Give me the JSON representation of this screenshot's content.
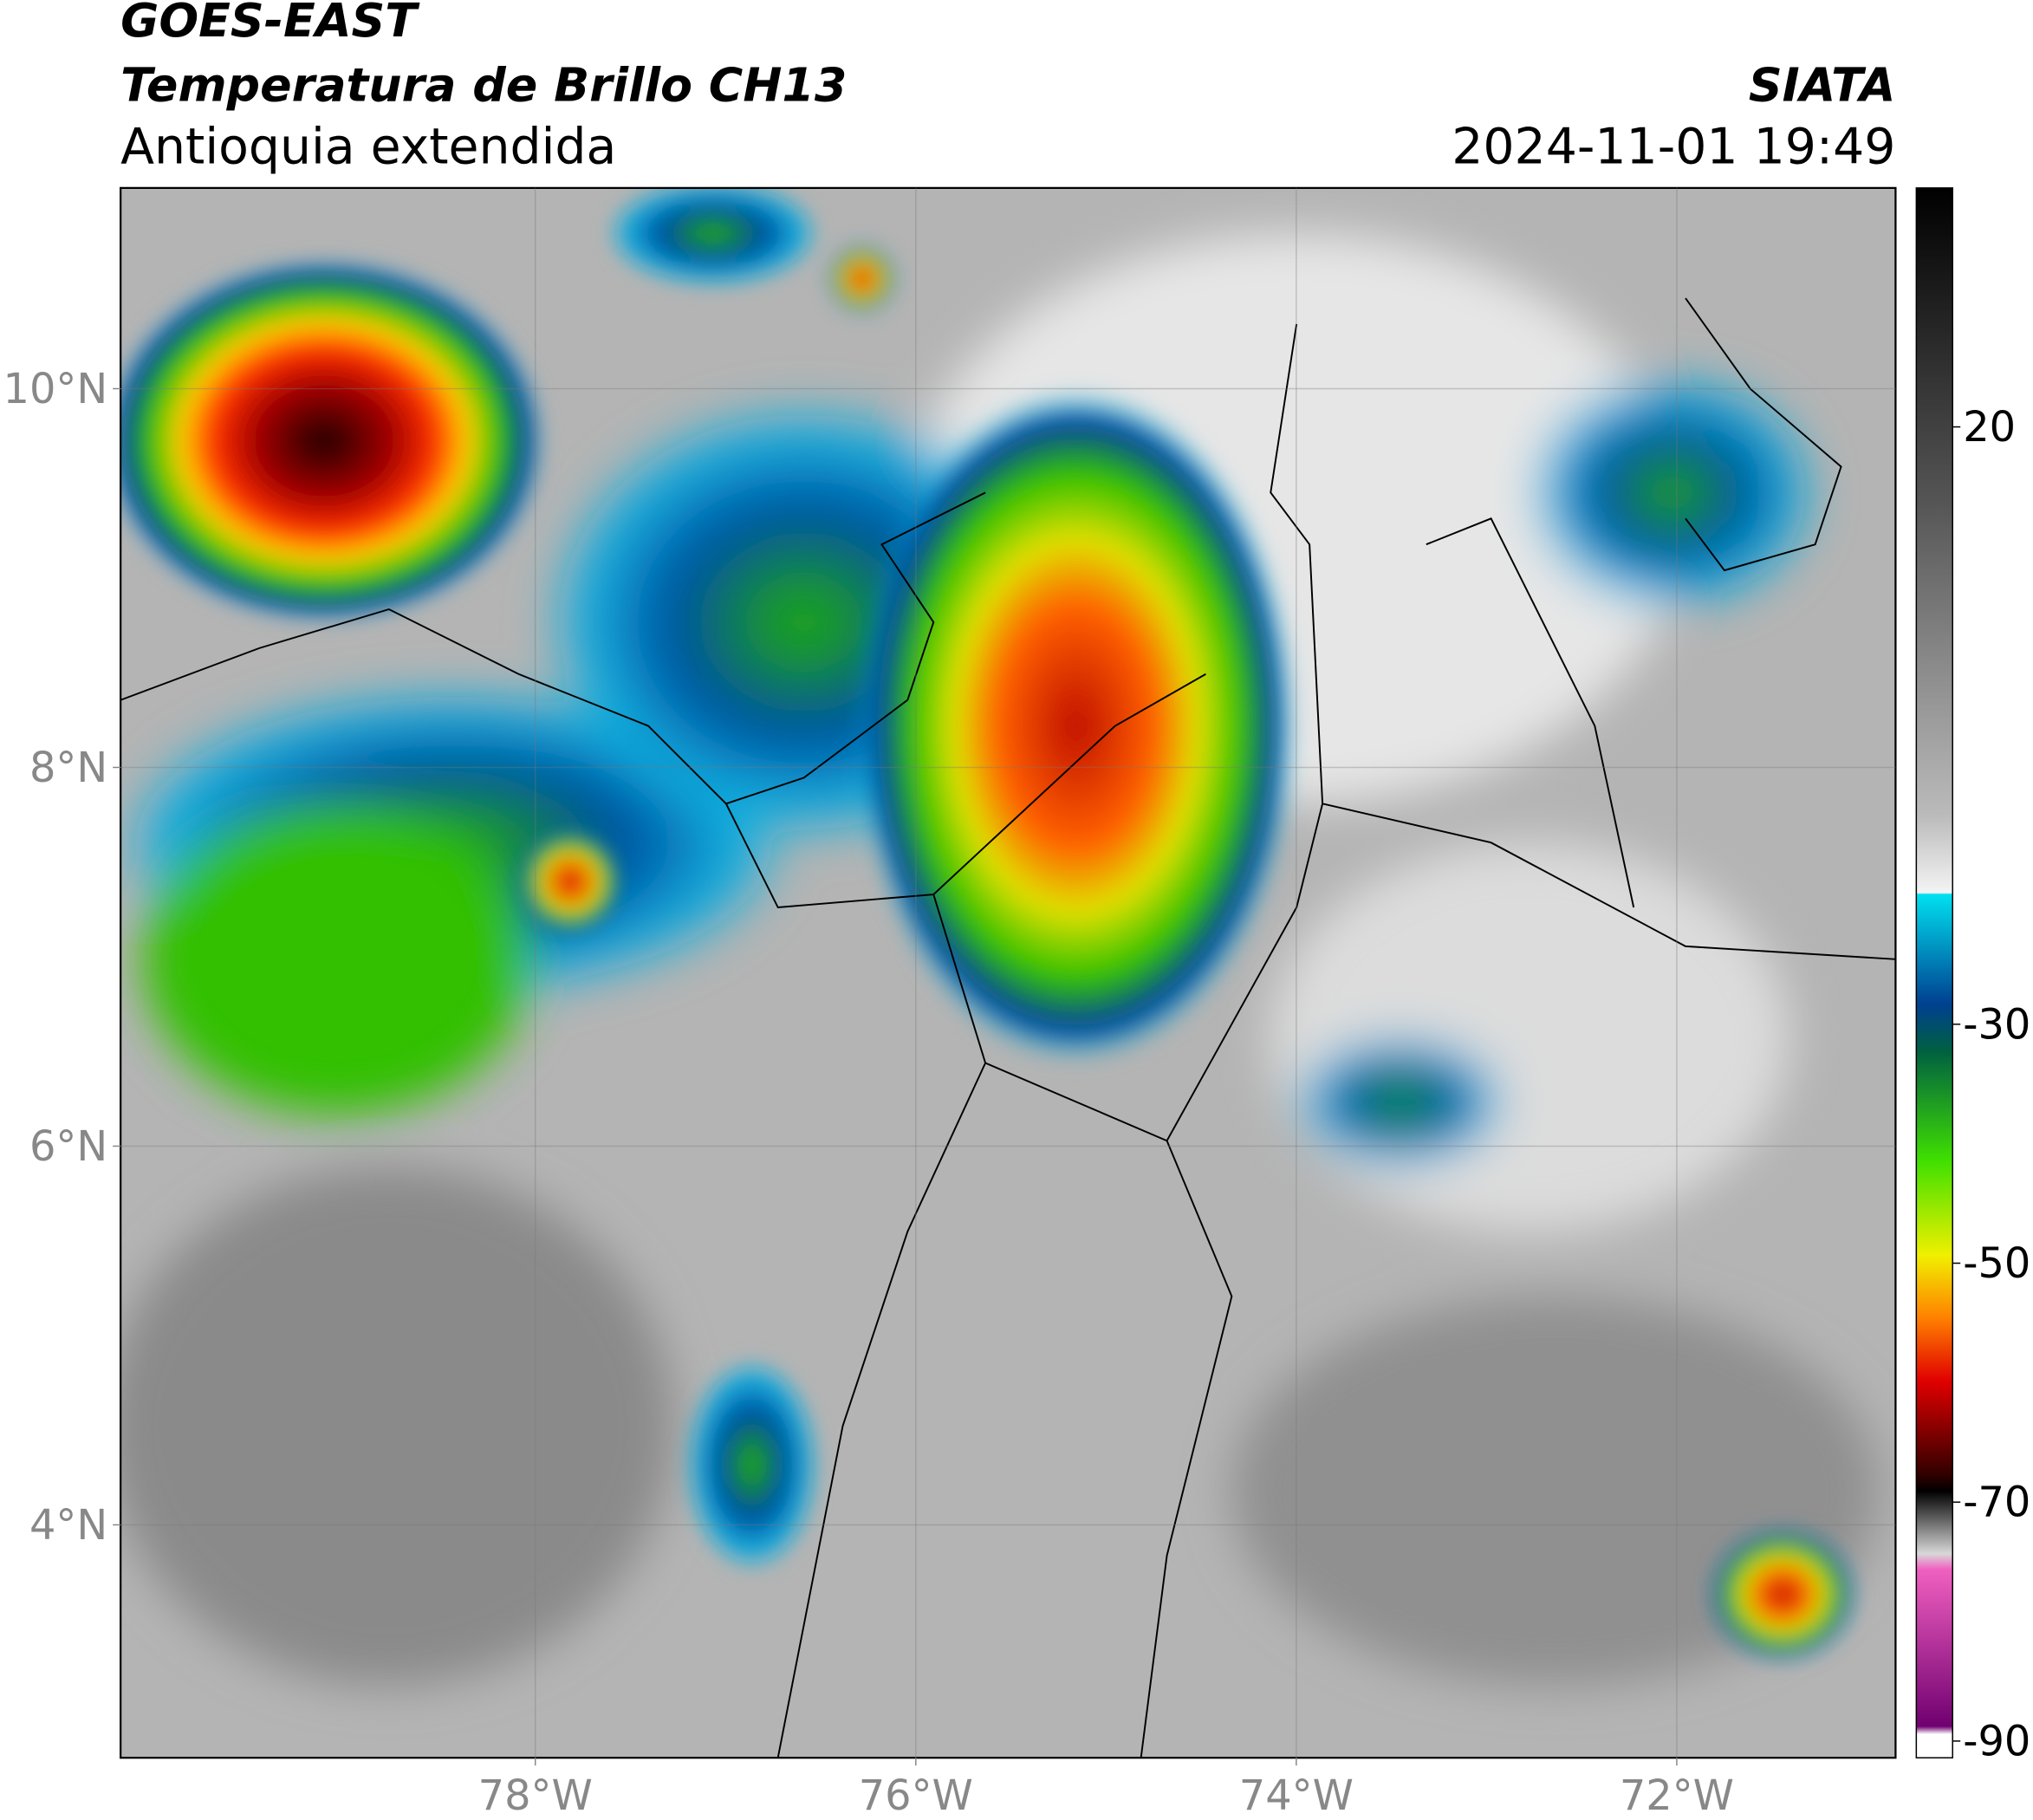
{
  "header": {
    "title": "GOES-EAST",
    "subtitle": "Temperatura de Brillo CH13",
    "region": "Antioquia extendida",
    "agency": "SIATA",
    "timestamp": "2024-11-01 19:49"
  },
  "map": {
    "xlim": [
      -80.18,
      -70.85
    ],
    "ylim": [
      2.77,
      11.06
    ],
    "xticks": [
      {
        "value": -78,
        "label": "78°W"
      },
      {
        "value": -76,
        "label": "76°W"
      },
      {
        "value": -74,
        "label": "74°W"
      },
      {
        "value": -72,
        "label": "72°W"
      }
    ],
    "yticks": [
      {
        "value": 4,
        "label": "4°N"
      },
      {
        "value": 6,
        "label": "6°N"
      },
      {
        "value": 8,
        "label": "8°N"
      },
      {
        "value": 10,
        "label": "10°N"
      }
    ],
    "grid": true
  },
  "colorbar": {
    "ylim": [
      -91.4,
      40
    ],
    "yticks": [
      -90,
      -70,
      -50,
      -30,
      20
    ]
  }
}
